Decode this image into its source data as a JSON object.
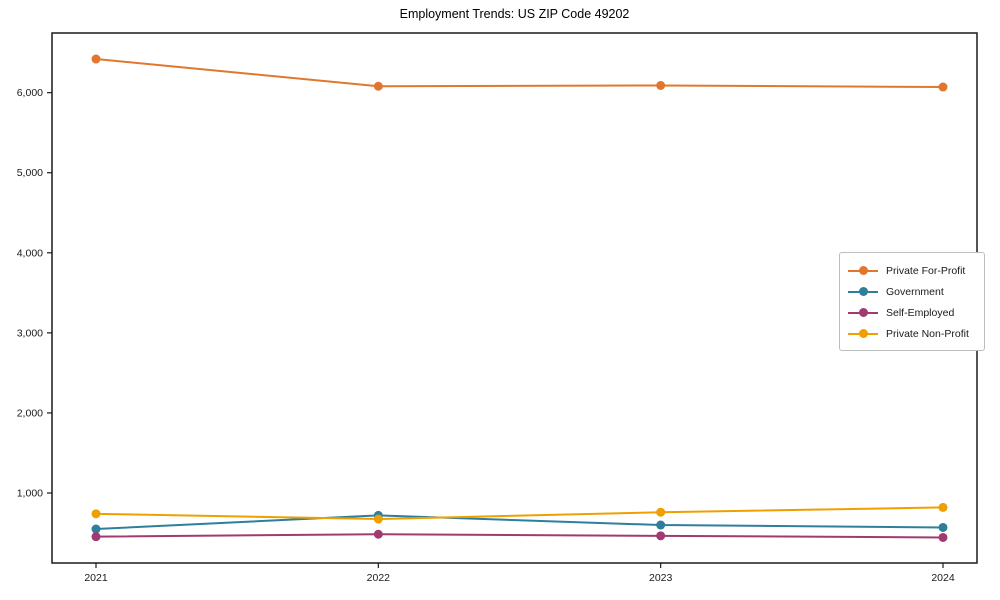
{
  "title": "Employment Trends: US ZIP Code 49202",
  "chart_data": {
    "type": "line",
    "title": "Employment Trends: US ZIP Code 49202",
    "x": [
      2021,
      2022,
      2023,
      2024
    ],
    "xtick_labels": [
      "2021",
      "2022",
      "2023",
      "2024"
    ],
    "yticks": [
      1000,
      2000,
      3000,
      4000,
      5000,
      6000
    ],
    "ytick_labels": [
      "1,000",
      "2,000",
      "3,000",
      "4,000",
      "5,000",
      "6,000"
    ],
    "ylim": [
      126,
      6745
    ],
    "grid": false,
    "legend_position": "center right",
    "series": [
      {
        "name": "Private For-Profit",
        "color": "#e1772e",
        "values": [
          6420,
          6080,
          6090,
          6070
        ]
      },
      {
        "name": "Government",
        "color": "#2e7e9c",
        "values": [
          550,
          720,
          600,
          570
        ]
      },
      {
        "name": "Self-Employed",
        "color": "#a23a72",
        "values": [
          455,
          485,
          465,
          445
        ]
      },
      {
        "name": "Private Non-Profit",
        "color": "#efa000",
        "values": [
          740,
          675,
          760,
          820
        ]
      }
    ],
    "axis_color": "#1a1a1a",
    "tick_label_color": "#1a1a1a"
  }
}
